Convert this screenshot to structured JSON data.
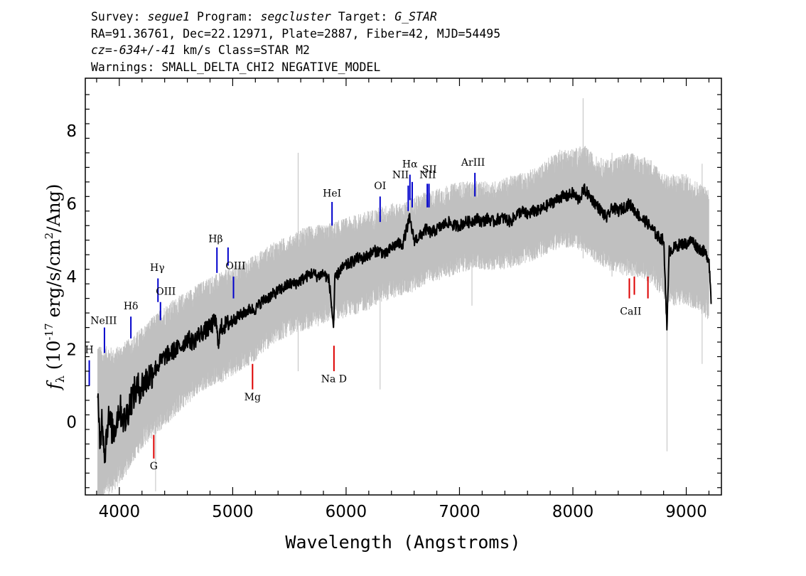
{
  "header": {
    "line1": {
      "survey_label": "Survey:",
      "survey": "segue1",
      "program_label": "Program:",
      "program": "segcluster",
      "target_label": "Target:",
      "target": "G_STAR"
    },
    "line2": "RA=91.36761, Dec=22.12971, Plate=2887, Fiber=42, MJD=54495",
    "line3": {
      "cz": "cz=-634+/-41",
      "rest": " km/s Class=STAR M2"
    },
    "line4": "Warnings: SMALL_DELTA_CHI2 NEGATIVE_MODEL"
  },
  "chart_data": {
    "type": "line",
    "xlabel": "Wavelength (Angstroms)",
    "ylabel": "f_λ (10^-17 erg/s/cm^2/Ang)",
    "xlim": [
      3700,
      9310
    ],
    "ylim": [
      -2.0,
      9.45
    ],
    "x_ticks": [
      4000,
      5000,
      6000,
      7000,
      8000,
      9000
    ],
    "y_ticks": [
      0,
      2,
      4,
      6,
      8
    ],
    "grid": false,
    "series": [
      {
        "color": "#c0c0c0",
        "role": "flux-error-envelope",
        "x": [
          3810,
          3850,
          3900,
          3950,
          4000,
          4050,
          4100,
          4200,
          4300,
          4400,
          4500,
          4600,
          4700,
          4800,
          4900,
          5000,
          5100,
          5200,
          5300,
          5400,
          5500,
          5600,
          5700,
          5800,
          5900,
          6000,
          6100,
          6200,
          6300,
          6400,
          6500,
          6600,
          6700,
          6800,
          6900,
          7000,
          7100,
          7200,
          7300,
          7400,
          7500,
          7600,
          7700,
          7800,
          7900,
          8000,
          8100,
          8200,
          8300,
          8400,
          8500,
          8600,
          8700,
          8800,
          8900,
          9000,
          9100,
          9200
        ],
        "upper": [
          1.8,
          1.6,
          1.7,
          1.6,
          1.7,
          1.8,
          1.9,
          2.2,
          2.5,
          2.8,
          3.0,
          3.2,
          3.4,
          3.6,
          3.7,
          3.9,
          4.0,
          4.2,
          4.4,
          4.6,
          4.7,
          4.9,
          5.0,
          5.0,
          5.1,
          5.2,
          5.3,
          5.4,
          5.5,
          5.6,
          5.6,
          5.8,
          5.9,
          6.0,
          6.1,
          6.2,
          6.2,
          6.2,
          6.2,
          6.3,
          6.4,
          6.5,
          6.6,
          6.9,
          7.1,
          7.1,
          7.2,
          6.9,
          6.8,
          6.9,
          7.0,
          6.9,
          6.8,
          6.4,
          6.4,
          6.4,
          6.2,
          6.0
        ],
        "lower": [
          -2.0,
          -1.8,
          -1.6,
          -1.5,
          -1.3,
          -1.1,
          -0.8,
          -0.3,
          0.0,
          0.3,
          0.6,
          0.9,
          1.2,
          1.4,
          1.5,
          1.7,
          1.9,
          2.1,
          2.4,
          2.6,
          2.8,
          2.9,
          3.0,
          3.1,
          3.2,
          3.3,
          3.4,
          3.5,
          3.7,
          3.8,
          3.9,
          4.0,
          4.2,
          4.3,
          4.4,
          4.5,
          4.6,
          4.6,
          4.6,
          4.6,
          4.7,
          4.8,
          4.9,
          5.1,
          5.2,
          5.2,
          5.1,
          4.8,
          4.6,
          4.5,
          4.4,
          4.4,
          4.2,
          3.8,
          3.6,
          3.6,
          3.5,
          3.2
        ]
      },
      {
        "color": "#000000",
        "role": "flux",
        "x": [
          3810,
          3830,
          3850,
          3870,
          3900,
          3950,
          4000,
          4050,
          4100,
          4150,
          4200,
          4250,
          4300,
          4350,
          4400,
          4450,
          4500,
          4550,
          4600,
          4650,
          4700,
          4750,
          4800,
          4850,
          4870,
          4900,
          4950,
          5000,
          5050,
          5100,
          5150,
          5200,
          5250,
          5300,
          5350,
          5400,
          5450,
          5500,
          5550,
          5600,
          5650,
          5700,
          5750,
          5800,
          5850,
          5890,
          5900,
          5950,
          6000,
          6050,
          6100,
          6150,
          6200,
          6250,
          6300,
          6350,
          6400,
          6450,
          6500,
          6560,
          6600,
          6650,
          6700,
          6750,
          6800,
          6850,
          6900,
          6950,
          7000,
          7050,
          7100,
          7150,
          7200,
          7250,
          7300,
          7350,
          7400,
          7450,
          7500,
          7550,
          7600,
          7650,
          7700,
          7750,
          7800,
          7850,
          7900,
          7950,
          8000,
          8050,
          8100,
          8150,
          8200,
          8250,
          8300,
          8350,
          8400,
          8450,
          8500,
          8550,
          8600,
          8650,
          8700,
          8750,
          8800,
          8830,
          8850,
          8900,
          8950,
          9000,
          9050,
          9100,
          9150,
          9200,
          9220
        ],
        "y": [
          0.5,
          -0.6,
          0.2,
          -0.9,
          0.1,
          -0.3,
          0.4,
          0.0,
          0.6,
          0.9,
          1.0,
          1.2,
          1.4,
          1.6,
          1.8,
          1.9,
          2.0,
          2.1,
          2.3,
          2.2,
          2.4,
          2.5,
          2.6,
          2.8,
          2.2,
          2.6,
          2.7,
          2.8,
          2.9,
          3.0,
          3.1,
          3.1,
          3.3,
          3.4,
          3.5,
          3.6,
          3.7,
          3.8,
          3.8,
          3.9,
          4.0,
          4.1,
          4.0,
          4.1,
          3.9,
          2.6,
          3.9,
          4.2,
          4.3,
          4.4,
          4.5,
          4.5,
          4.6,
          4.7,
          4.7,
          4.6,
          4.8,
          4.9,
          4.9,
          5.6,
          5.0,
          5.1,
          5.3,
          5.2,
          5.3,
          5.4,
          5.5,
          5.4,
          5.4,
          5.5,
          5.5,
          5.6,
          5.5,
          5.6,
          5.5,
          5.6,
          5.6,
          5.5,
          5.7,
          5.8,
          5.7,
          5.8,
          5.8,
          5.9,
          6.0,
          6.1,
          6.2,
          6.2,
          6.3,
          6.1,
          6.4,
          6.2,
          6.0,
          5.8,
          5.6,
          5.9,
          5.8,
          5.9,
          6.0,
          5.8,
          5.6,
          5.5,
          5.3,
          5.1,
          5.0,
          2.6,
          4.7,
          4.8,
          4.9,
          4.9,
          5.0,
          4.8,
          4.7,
          4.5,
          3.3
        ]
      }
    ],
    "annotations": {
      "emission": [
        {
          "label": "H",
          "x": 3735,
          "y0": 1.0,
          "y1": 1.7,
          "tx": 3735,
          "ty": 1.9
        },
        {
          "label": "NeIII",
          "x": 3869,
          "y0": 1.9,
          "y1": 2.6,
          "tx": 3862,
          "ty": 2.7
        },
        {
          "label": "Hδ",
          "x": 4102,
          "y0": 2.3,
          "y1": 2.9,
          "tx": 4102,
          "ty": 3.1
        },
        {
          "label": "Hγ",
          "x": 4341,
          "y0": 3.3,
          "y1": 3.95,
          "tx": 4335,
          "ty": 4.15
        },
        {
          "label": "OIII",
          "x": 4363,
          "y0": 2.8,
          "y1": 3.3,
          "tx": 4410,
          "ty": 3.5
        },
        {
          "label": "Hβ",
          "x": 4861,
          "y0": 4.1,
          "y1": 4.8,
          "tx": 4850,
          "ty": 4.95
        },
        {
          "label": "OIII",
          "x": 4959,
          "y0": 4.3,
          "y1": 4.8,
          "tx": 5025,
          "ty": 4.2
        },
        {
          "label": "OIII",
          "x": 5007,
          "y0": 3.4,
          "y1": 4.0,
          "tx": 5025,
          "ty": 4.2
        },
        {
          "label": "HeI",
          "x": 5876,
          "y0": 5.4,
          "y1": 6.05,
          "tx": 5876,
          "ty": 6.2
        },
        {
          "label": "OI",
          "x": 6300,
          "y0": 5.5,
          "y1": 6.2,
          "tx": 6300,
          "ty": 6.4
        },
        {
          "label": "NII",
          "x": 6548,
          "y0": 5.8,
          "y1": 6.5,
          "tx": 6480,
          "ty": 6.7
        },
        {
          "label": "Hα",
          "x": 6563,
          "y0": 6.1,
          "y1": 6.8,
          "tx": 6563,
          "ty": 7.0
        },
        {
          "label": "NII",
          "x": 6583,
          "y0": 5.9,
          "y1": 6.6,
          "tx": 6720,
          "ty": 6.7
        },
        {
          "label": "SII",
          "x": 6716,
          "y0": 5.9,
          "y1": 6.55,
          "tx": 6735,
          "ty": 6.85
        },
        {
          "label": "SII",
          "x": 6731,
          "y0": 5.9,
          "y1": 6.55,
          "tx": 6735,
          "ty": 6.85
        },
        {
          "label": "ArIII",
          "x": 7136,
          "y0": 6.2,
          "y1": 6.85,
          "tx": 7120,
          "ty": 7.05
        }
      ],
      "absorption": [
        {
          "label": "G",
          "x": 4304,
          "y0": -1.0,
          "y1": -0.35,
          "tx": 4304,
          "ty": -1.3
        },
        {
          "label": "Mg",
          "x": 5175,
          "y0": 0.9,
          "y1": 1.6,
          "tx": 5175,
          "ty": 0.6
        },
        {
          "label": "Na D",
          "x": 5893,
          "y0": 1.4,
          "y1": 2.1,
          "tx": 5893,
          "ty": 1.1
        },
        {
          "label": "CaII",
          "x": 8498,
          "y0": 3.4,
          "y1": 3.95,
          "tx": 8510,
          "ty": 2.95
        },
        {
          "label": "CaII",
          "x": 8542,
          "y0": 3.5,
          "y1": 4.0,
          "tx": 8510,
          "ty": 2.95
        },
        {
          "label": "CaII",
          "x": 8662,
          "y0": 3.4,
          "y1": 4.0,
          "tx": 8510,
          "ty": 2.95
        }
      ]
    }
  }
}
